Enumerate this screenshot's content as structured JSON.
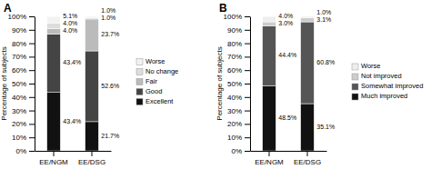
{
  "chart_data": [
    {
      "type": "bar",
      "title": "A",
      "categories": [
        "EE/NGM",
        "EE/DSG"
      ],
      "ylabel": "Percentage of subjects",
      "ylim": [
        0,
        100
      ],
      "yticks": [
        {
          "value": 0,
          "label": "0%"
        },
        {
          "value": 10,
          "label": "10%"
        },
        {
          "value": 20,
          "label": "20%"
        },
        {
          "value": 30,
          "label": "30%"
        },
        {
          "value": 40,
          "label": "40%"
        },
        {
          "value": 50,
          "label": "50%"
        },
        {
          "value": 60,
          "label": "60%"
        },
        {
          "value": 70,
          "label": "70%"
        },
        {
          "value": 80,
          "label": "80%"
        },
        {
          "value": 90,
          "label": "90%"
        },
        {
          "value": 100,
          "label": "100%"
        }
      ],
      "stacked": true,
      "data_labels": true,
      "grid": false,
      "legend": "right",
      "series": [
        {
          "name": "Excellent",
          "color": "#111111",
          "values": [
            43.4,
            21.7
          ],
          "value_labels": [
            "43.4%",
            "21.7%"
          ]
        },
        {
          "name": "Good",
          "color": "#444444",
          "values": [
            43.4,
            52.6
          ],
          "value_labels": [
            "43.4%",
            "52.6%"
          ]
        },
        {
          "name": "Fair",
          "color": "#bbbbbb",
          "values": [
            4.0,
            23.7
          ],
          "value_labels": [
            "4.0%",
            "23.7%"
          ]
        },
        {
          "name": "No change",
          "color": "#dddddd",
          "values": [
            4.0,
            1.0
          ],
          "value_labels": [
            "4.0%",
            "1.0%"
          ]
        },
        {
          "name": "Worse",
          "color": "#f2f2f2",
          "values": [
            5.1,
            1.0
          ],
          "value_labels": [
            "5.1%",
            "1.0%"
          ]
        }
      ]
    },
    {
      "type": "bar",
      "title": "B",
      "categories": [
        "EE/NGM",
        "EE/DSG"
      ],
      "ylabel": "Percentage of subjects",
      "ylim": [
        0,
        100
      ],
      "yticks": [
        {
          "value": 0,
          "label": "0%"
        },
        {
          "value": 10,
          "label": "10%"
        },
        {
          "value": 20,
          "label": "20%"
        },
        {
          "value": 30,
          "label": "30%"
        },
        {
          "value": 40,
          "label": "40%"
        },
        {
          "value": 50,
          "label": "50%"
        },
        {
          "value": 60,
          "label": "60%"
        },
        {
          "value": 70,
          "label": "70%"
        },
        {
          "value": 80,
          "label": "80%"
        },
        {
          "value": 90,
          "label": "90%"
        },
        {
          "value": 100,
          "label": "100%"
        }
      ],
      "stacked": true,
      "data_labels": true,
      "grid": false,
      "legend": "right",
      "series": [
        {
          "name": "Much improved",
          "color": "#111111",
          "values": [
            48.5,
            35.1
          ],
          "value_labels": [
            "48.5%",
            "35.1%"
          ]
        },
        {
          "name": "Somewhat improved",
          "color": "#555555",
          "values": [
            44.4,
            60.8
          ],
          "value_labels": [
            "44.4%",
            "60.8%"
          ]
        },
        {
          "name": "Not improved",
          "color": "#cccccc",
          "values": [
            3.0,
            3.1
          ],
          "value_labels": [
            "3.0%",
            "3.1%"
          ]
        },
        {
          "name": "Worse",
          "color": "#eeeeee",
          "values": [
            4.0,
            1.0
          ],
          "value_labels": [
            "4.0%",
            "1.0%"
          ]
        }
      ]
    }
  ]
}
